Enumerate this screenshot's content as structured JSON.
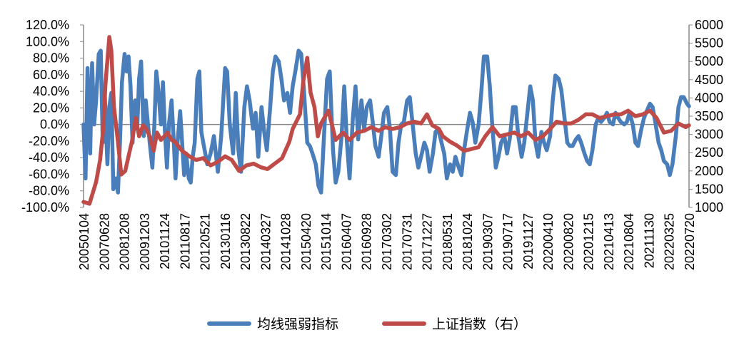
{
  "chart_data": {
    "type": "line",
    "title": "",
    "xlabel": "",
    "x_unit": "week index (weekly data from 20050104 to 20220720)",
    "x_range": [
      0,
      915
    ],
    "x_tick_labels": [
      "20050104",
      "20070628",
      "20081208",
      "20091203",
      "20101124",
      "20110817",
      "20120521",
      "20130116",
      "20130822",
      "20140327",
      "20141028",
      "20150420",
      "20151014",
      "20160407",
      "20160928",
      "20170302",
      "20170731",
      "20171227",
      "20180531",
      "20181024",
      "20190307",
      "20190717",
      "20191127",
      "20200410",
      "20200820",
      "20201215",
      "20210413",
      "20210804",
      "20211130",
      "20220325",
      "20220720"
    ],
    "y_left": {
      "label": "",
      "range": [
        -100,
        120
      ],
      "ticks": [
        "120.0%",
        "100.0%",
        "80.0%",
        "60.0%",
        "40.0%",
        "20.0%",
        "0.0%",
        "-20.0%",
        "-40.0%",
        "-60.0%",
        "-80.0%",
        "-100.0%"
      ],
      "tick_values": [
        120,
        100,
        80,
        60,
        40,
        20,
        0,
        -20,
        -40,
        -60,
        -80,
        -100
      ]
    },
    "y_right": {
      "label": "",
      "range": [
        1000,
        6000
      ],
      "ticks": [
        "6000",
        "5500",
        "5000",
        "4500",
        "4000",
        "3500",
        "3000",
        "2500",
        "2000",
        "1500",
        "1000"
      ],
      "tick_values": [
        6000,
        5500,
        5000,
        4500,
        4000,
        3500,
        3000,
        2500,
        2000,
        1500,
        1000
      ]
    },
    "grid": false,
    "legend_position": "bottom",
    "series": [
      {
        "name": "均线强弱指标",
        "axis": "left",
        "color": "#4A7EBB",
        "x": [
          0,
          3,
          6,
          10,
          13,
          16,
          19,
          23,
          26,
          29,
          32,
          36,
          39,
          42,
          45,
          49,
          52,
          55,
          58,
          62,
          65,
          68,
          71,
          74,
          78,
          81,
          84,
          87,
          91,
          94,
          97,
          100,
          104,
          107,
          110,
          113,
          117,
          120,
          123,
          126,
          129,
          133,
          136,
          139,
          142,
          146,
          149,
          152,
          155,
          159,
          162,
          165,
          168,
          172,
          175,
          178,
          181,
          187,
          192,
          197,
          203,
          208,
          214,
          217,
          221,
          226,
          230,
          234,
          238,
          243,
          247,
          251,
          256,
          260,
          264,
          269,
          273,
          277,
          282,
          286,
          290,
          295,
          299,
          303,
          308,
          312,
          316,
          320,
          325,
          329,
          333,
          338,
          342,
          346,
          351,
          355,
          359,
          364,
          368,
          372,
          377,
          381,
          385,
          390,
          394,
          398,
          402,
          407,
          411,
          415,
          420,
          424,
          428,
          433,
          437,
          441,
          446,
          450,
          454,
          459,
          463,
          467,
          472,
          476,
          480,
          484,
          489,
          493,
          497,
          502,
          506,
          510,
          515,
          519,
          523,
          528,
          532,
          536,
          541,
          545,
          549,
          554,
          558,
          562,
          567,
          571,
          575,
          580,
          584,
          588,
          592,
          597,
          601,
          605,
          610,
          614,
          618,
          623,
          627,
          631,
          636,
          640,
          644,
          649,
          653,
          657,
          662,
          666,
          670,
          675,
          679,
          683,
          687,
          692,
          696,
          700,
          705,
          709,
          713,
          718,
          722,
          726,
          731,
          735,
          739,
          744,
          748,
          752,
          757,
          761,
          765,
          769,
          774,
          778,
          782,
          787,
          791,
          795,
          800,
          804,
          808,
          812,
          817,
          821,
          825,
          830,
          834,
          838,
          843,
          847,
          851,
          856,
          860,
          864,
          869,
          873,
          877,
          882,
          886,
          890,
          895,
          899,
          903,
          907,
          912,
          915
        ],
        "values": [
          0,
          -65,
          68,
          -35,
          74,
          0,
          29,
          85,
          89,
          -22,
          38,
          -48,
          21,
          38,
          -78,
          -65,
          -82,
          -22,
          51,
          85,
          64,
          82,
          46,
          -22,
          29,
          -5,
          55,
          76,
          -14,
          29,
          3,
          -22,
          -52,
          0,
          64,
          42,
          0,
          51,
          -9,
          -52,
          0,
          29,
          -14,
          -65,
          -22,
          16,
          -22,
          -61,
          -35,
          -65,
          -70,
          -39,
          -22,
          55,
          64,
          -9,
          -22,
          -48,
          -35,
          -14,
          -57,
          -14,
          68,
          64,
          0,
          -35,
          38,
          -31,
          -57,
          21,
          46,
          29,
          -5,
          14,
          -39,
          21,
          -9,
          -31,
          21,
          64,
          82,
          76,
          55,
          29,
          38,
          14,
          46,
          64,
          89,
          85,
          42,
          -22,
          -26,
          -35,
          -48,
          -74,
          -82,
          -5,
          55,
          64,
          -31,
          -70,
          -57,
          -14,
          46,
          -22,
          -65,
          8,
          46,
          -18,
          29,
          -5,
          21,
          29,
          3,
          -26,
          -39,
          -14,
          14,
          21,
          -5,
          -57,
          -61,
          -22,
          0,
          3,
          29,
          33,
          3,
          -35,
          -52,
          -39,
          -22,
          -31,
          -57,
          -35,
          -9,
          -5,
          -22,
          -35,
          -65,
          -48,
          -57,
          -39,
          -52,
          -61,
          -31,
          -5,
          14,
          3,
          -22,
          0,
          38,
          82,
          82,
          46,
          -5,
          -52,
          -39,
          -22,
          -14,
          -35,
          -18,
          21,
          21,
          -14,
          -39,
          -22,
          8,
          46,
          29,
          -22,
          -39,
          -9,
          -22,
          -31,
          -14,
          29,
          59,
          55,
          42,
          14,
          -22,
          -26,
          -26,
          -18,
          -14,
          -22,
          -35,
          -44,
          -48,
          -31,
          0,
          8,
          3,
          8,
          14,
          3,
          0,
          14,
          8,
          3,
          0,
          3,
          14,
          0,
          -22,
          -26,
          -5,
          8,
          16,
          25,
          21,
          3,
          -22,
          -31,
          -44,
          -48,
          -61,
          -48,
          -14,
          21,
          33,
          33,
          25,
          22
        ]
      },
      {
        "name": "上证指数（右）",
        "axis": "right",
        "color": "#BE4B48",
        "x": [
          0,
          9,
          14,
          19,
          25,
          30,
          33,
          39,
          42,
          46,
          52,
          57,
          63,
          68,
          73,
          79,
          84,
          90,
          95,
          100,
          106,
          111,
          117,
          122,
          127,
          133,
          138,
          149,
          160,
          170,
          181,
          192,
          203,
          214,
          224,
          235,
          246,
          257,
          268,
          278,
          289,
          300,
          311,
          316,
          327,
          332,
          338,
          343,
          349,
          354,
          359,
          370,
          375,
          381,
          392,
          402,
          413,
          424,
          435,
          446,
          456,
          467,
          478,
          489,
          500,
          510,
          519,
          527,
          537,
          543,
          554,
          564,
          575,
          586,
          597,
          607,
          618,
          629,
          640,
          651,
          661,
          672,
          683,
          694,
          705,
          715,
          726,
          737,
          748,
          759,
          769,
          780,
          791,
          802,
          812,
          823,
          834,
          845,
          856,
          866,
          877,
          888,
          899,
          910,
          915
        ],
        "values": [
          1150,
          1100,
          1400,
          1700,
          2300,
          3200,
          4350,
          5670,
          5300,
          3750,
          2800,
          1900,
          2000,
          2400,
          2800,
          3450,
          2950,
          3250,
          3150,
          2950,
          2550,
          3050,
          2850,
          2950,
          3050,
          2850,
          2800,
          2550,
          2400,
          2300,
          2350,
          2150,
          2250,
          2400,
          2300,
          2000,
          2150,
          2200,
          2100,
          2050,
          2200,
          2350,
          2800,
          3150,
          3550,
          4450,
          5100,
          4150,
          3750,
          2950,
          3300,
          3650,
          3300,
          2850,
          3050,
          2850,
          3050,
          3100,
          3200,
          3100,
          3200,
          3150,
          3200,
          3300,
          3350,
          3300,
          3550,
          3250,
          3150,
          2950,
          2800,
          2700,
          2550,
          2600,
          2650,
          2950,
          3200,
          2950,
          3000,
          3050,
          2950,
          3050,
          2850,
          2950,
          3150,
          3350,
          3300,
          3300,
          3400,
          3550,
          3550,
          3450,
          3500,
          3550,
          3550,
          3650,
          3500,
          3550,
          3650,
          3450,
          3050,
          3100,
          3300,
          3200,
          3250
        ]
      }
    ]
  }
}
